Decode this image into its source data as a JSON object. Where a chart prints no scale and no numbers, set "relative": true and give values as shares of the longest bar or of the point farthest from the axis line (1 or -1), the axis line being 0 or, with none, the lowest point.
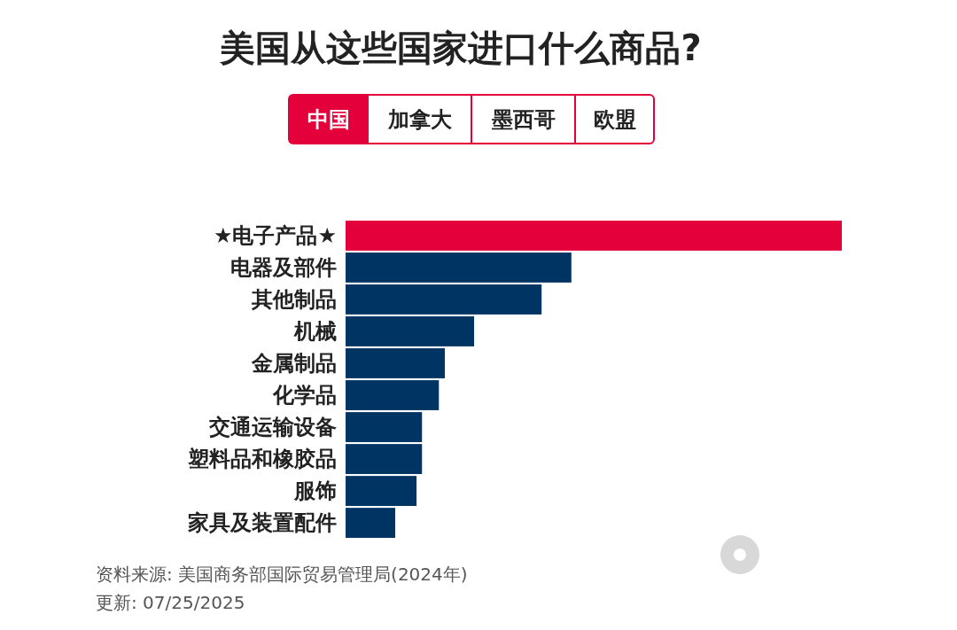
{
  "chart_data": {
    "type": "bar",
    "orientation": "horizontal",
    "relative": true,
    "title": "美国从这些国家进口什么商品?",
    "categories": [
      "★电子产品★",
      "电器及部件",
      "其他制品",
      "机械",
      "金属制品",
      "化学品",
      "交通运输设备",
      "塑料品和橡胶品",
      "服饰",
      "家具及装置配件"
    ],
    "values": [
      1,
      0.455,
      0.395,
      0.259,
      0.2,
      0.188,
      0.154,
      0.154,
      0.143,
      0.1
    ],
    "colors": [
      "#e4003b",
      "#003463",
      "#003463",
      "#003463",
      "#003463",
      "#003463",
      "#003463",
      "#003463",
      "#003463",
      "#003463"
    ],
    "annotations": [
      "中国",
      "加拿大",
      "墨西哥",
      "欧盟",
      "资料来源: 美国商务部国际贸易管理局(2024年)",
      "更新: 07/25/2025"
    ]
  }
}
